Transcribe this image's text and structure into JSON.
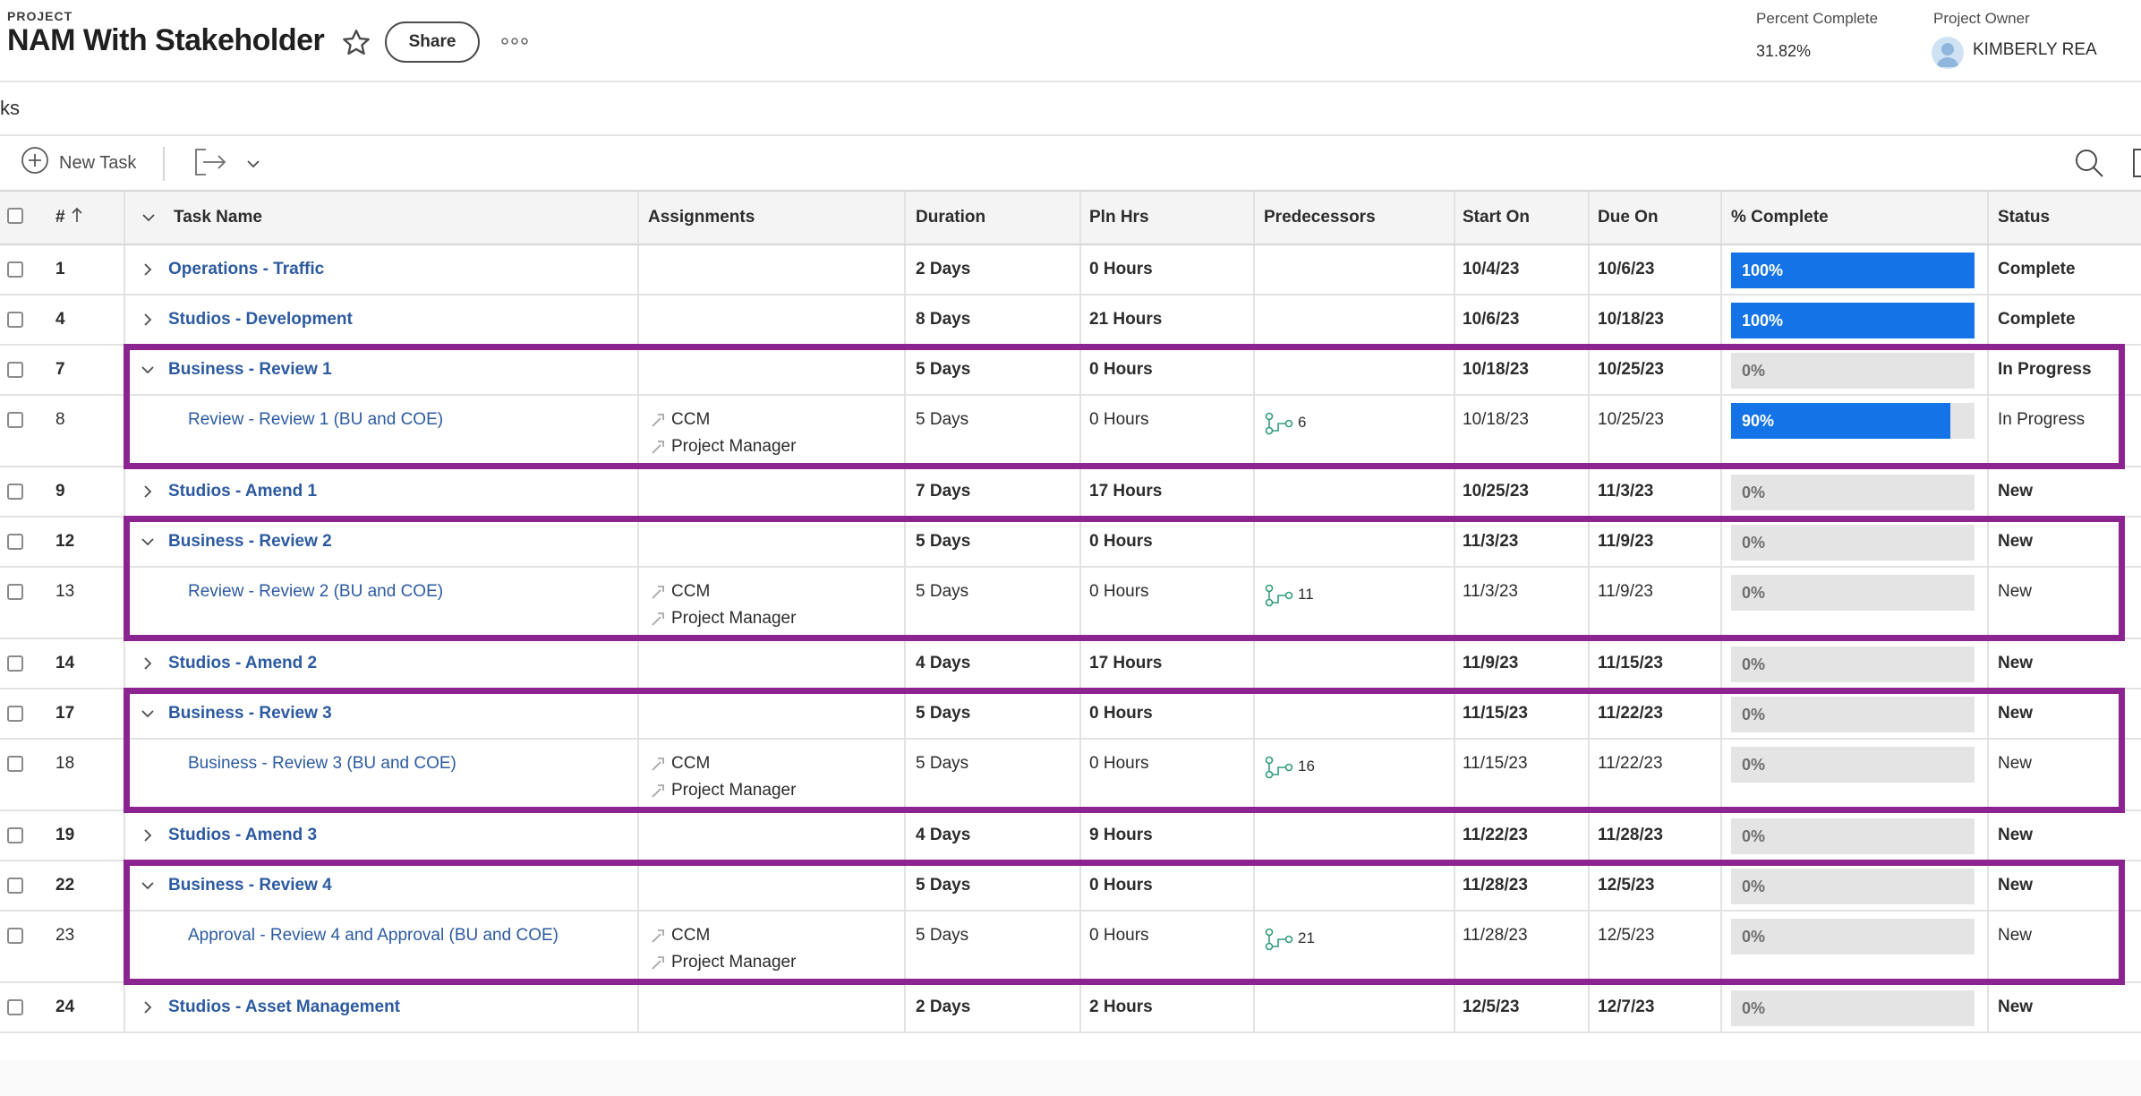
{
  "header": {
    "project_label": "PROJECT",
    "project_title": "NAM With Stakeholder",
    "share_label": "Share",
    "percent_complete_label": "Percent Complete",
    "percent_complete_value": "31.82%",
    "project_owner_label": "Project Owner",
    "project_owner_value": "KIMBERLY REA"
  },
  "tabs": {
    "current_label": "ks"
  },
  "toolbar": {
    "new_task_label": "New Task"
  },
  "columns": {
    "number": "#",
    "task_name": "Task Name",
    "assignments": "Assignments",
    "duration": "Duration",
    "pln_hrs": "Pln Hrs",
    "predecessors": "Predecessors",
    "start_on": "Start On",
    "due_on": "Due On",
    "percent_complete": "% Complete",
    "status": "Status"
  },
  "icons": {
    "star": "star-icon",
    "more": "more-icon",
    "new_task": "plus-circle-icon",
    "export": "export-icon",
    "search": "search-icon",
    "expand": "chevron-right-icon",
    "collapse": "chevron-down-icon",
    "predecessor": "predecessor-icon",
    "assignment": "assignment-icon",
    "sort": "sort-ascending-icon"
  },
  "colors": {
    "link": "#2c5aa0",
    "progress": "#1473e6",
    "highlight": "#8b2391",
    "predecessor": "#2d9d78"
  },
  "tasks": [
    {
      "num": "1",
      "name": "Operations - Traffic",
      "parent": true,
      "expanded": false,
      "assignments": [],
      "duration": "2 Days",
      "pln_hrs": "0 Hours",
      "predecessors": "",
      "start": "10/4/23",
      "due": "10/6/23",
      "pct": "100%",
      "pct_value": 100,
      "status": "Complete"
    },
    {
      "num": "4",
      "name": "Studios - Development",
      "parent": true,
      "expanded": false,
      "assignments": [],
      "duration": "8 Days",
      "pln_hrs": "21 Hours",
      "predecessors": "",
      "start": "10/6/23",
      "due": "10/18/23",
      "pct": "100%",
      "pct_value": 100,
      "status": "Complete"
    },
    {
      "num": "7",
      "name": "Business - Review 1",
      "parent": true,
      "expanded": true,
      "assignments": [],
      "duration": "5 Days",
      "pln_hrs": "0 Hours",
      "predecessors": "",
      "start": "10/18/23",
      "due": "10/25/23",
      "pct": "0%",
      "pct_value": 0,
      "status": "In Progress"
    },
    {
      "num": "8",
      "name": "Review - Review 1 (BU and COE)",
      "parent": false,
      "expanded": false,
      "assignments": [
        "CCM",
        "Project Manager"
      ],
      "duration": "5 Days",
      "pln_hrs": "0 Hours",
      "predecessors": "6",
      "start": "10/18/23",
      "due": "10/25/23",
      "pct": "90%",
      "pct_value": 90,
      "status": "In Progress"
    },
    {
      "num": "9",
      "name": "Studios - Amend 1",
      "parent": true,
      "expanded": false,
      "assignments": [],
      "duration": "7 Days",
      "pln_hrs": "17 Hours",
      "predecessors": "",
      "start": "10/25/23",
      "due": "11/3/23",
      "pct": "0%",
      "pct_value": 0,
      "status": "New"
    },
    {
      "num": "12",
      "name": "Business - Review 2",
      "parent": true,
      "expanded": true,
      "assignments": [],
      "duration": "5 Days",
      "pln_hrs": "0 Hours",
      "predecessors": "",
      "start": "11/3/23",
      "due": "11/9/23",
      "pct": "0%",
      "pct_value": 0,
      "status": "New"
    },
    {
      "num": "13",
      "name": "Review - Review 2 (BU and COE)",
      "parent": false,
      "expanded": false,
      "assignments": [
        "CCM",
        "Project Manager"
      ],
      "duration": "5 Days",
      "pln_hrs": "0 Hours",
      "predecessors": "11",
      "start": "11/3/23",
      "due": "11/9/23",
      "pct": "0%",
      "pct_value": 0,
      "status": "New"
    },
    {
      "num": "14",
      "name": "Studios - Amend 2",
      "parent": true,
      "expanded": false,
      "assignments": [],
      "duration": "4 Days",
      "pln_hrs": "17 Hours",
      "predecessors": "",
      "start": "11/9/23",
      "due": "11/15/23",
      "pct": "0%",
      "pct_value": 0,
      "status": "New"
    },
    {
      "num": "17",
      "name": "Business - Review 3",
      "parent": true,
      "expanded": true,
      "assignments": [],
      "duration": "5 Days",
      "pln_hrs": "0 Hours",
      "predecessors": "",
      "start": "11/15/23",
      "due": "11/22/23",
      "pct": "0%",
      "pct_value": 0,
      "status": "New"
    },
    {
      "num": "18",
      "name": "Business - Review 3 (BU and COE)",
      "parent": false,
      "expanded": false,
      "assignments": [
        "CCM",
        "Project Manager"
      ],
      "duration": "5 Days",
      "pln_hrs": "0 Hours",
      "predecessors": "16",
      "start": "11/15/23",
      "due": "11/22/23",
      "pct": "0%",
      "pct_value": 0,
      "status": "New"
    },
    {
      "num": "19",
      "name": "Studios - Amend 3",
      "parent": true,
      "expanded": false,
      "assignments": [],
      "duration": "4 Days",
      "pln_hrs": "9 Hours",
      "predecessors": "",
      "start": "11/22/23",
      "due": "11/28/23",
      "pct": "0%",
      "pct_value": 0,
      "status": "New"
    },
    {
      "num": "22",
      "name": "Business - Review 4",
      "parent": true,
      "expanded": true,
      "assignments": [],
      "duration": "5 Days",
      "pln_hrs": "0 Hours",
      "predecessors": "",
      "start": "11/28/23",
      "due": "12/5/23",
      "pct": "0%",
      "pct_value": 0,
      "status": "New"
    },
    {
      "num": "23",
      "name": "Approval - Review 4 and Approval (BU and COE)",
      "parent": false,
      "expanded": false,
      "assignments": [
        "CCM",
        "Project Manager"
      ],
      "duration": "5 Days",
      "pln_hrs": "0 Hours",
      "predecessors": "21",
      "start": "11/28/23",
      "due": "12/5/23",
      "pct": "0%",
      "pct_value": 0,
      "status": "New"
    },
    {
      "num": "24",
      "name": "Studios - Asset Management",
      "parent": true,
      "expanded": false,
      "assignments": [],
      "duration": "2 Days",
      "pln_hrs": "2 Hours",
      "predecessors": "",
      "start": "12/5/23",
      "due": "12/7/23",
      "pct": "0%",
      "pct_value": 0,
      "status": "New"
    }
  ]
}
